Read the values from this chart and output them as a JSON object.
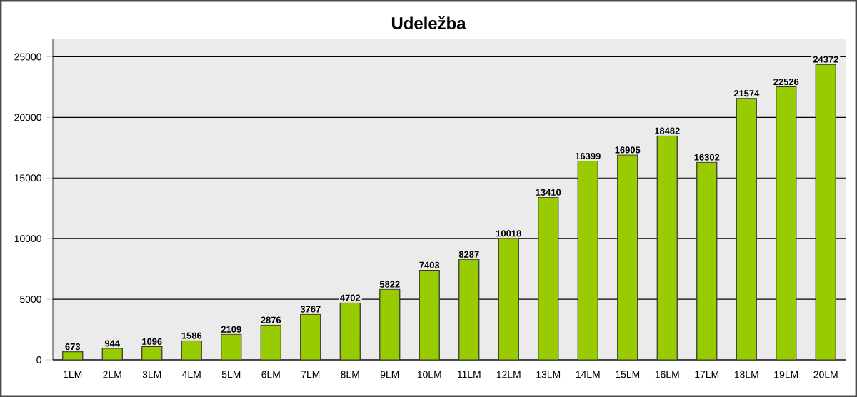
{
  "chart_data": {
    "type": "bar",
    "title": "Udeležba",
    "categories": [
      "1LM",
      "2LM",
      "3LM",
      "4LM",
      "5LM",
      "6LM",
      "7LM",
      "8LM",
      "9LM",
      "10LM",
      "11LM",
      "12LM",
      "13LM",
      "14LM",
      "15LM",
      "16LM",
      "17LM",
      "18LM",
      "19LM",
      "20LM"
    ],
    "values": [
      673,
      944,
      1096,
      1586,
      2109,
      2876,
      3767,
      4702,
      5822,
      7403,
      8287,
      10018,
      13410,
      16399,
      16905,
      18482,
      16302,
      21574,
      22526,
      24372
    ],
    "color": "#99cc00",
    "ylim": [
      0,
      26500
    ],
    "yticks": [
      0,
      5000,
      10000,
      15000,
      20000,
      25000
    ],
    "grid": "y",
    "data_labels": true
  }
}
